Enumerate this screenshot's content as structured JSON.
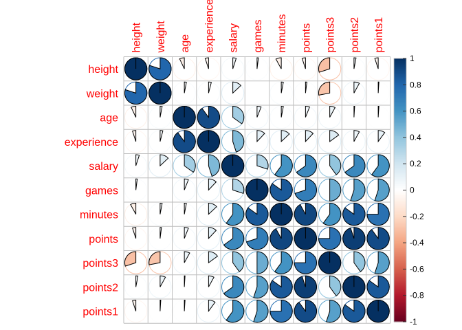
{
  "chart_data": {
    "type": "heatmap",
    "style": "corrplot pie",
    "variables": [
      "height",
      "weight",
      "age",
      "experience",
      "salary",
      "games",
      "minutes",
      "points",
      "points3",
      "points2",
      "points1"
    ],
    "matrix": [
      [
        1.0,
        0.8,
        -0.07,
        -0.05,
        0.05,
        0.02,
        -0.08,
        -0.05,
        -0.3,
        0.03,
        -0.05
      ],
      [
        0.8,
        1.0,
        0.03,
        0.04,
        0.13,
        0.0,
        0.03,
        0.02,
        -0.28,
        0.08,
        0.01
      ],
      [
        -0.07,
        0.03,
        1.0,
        0.9,
        0.35,
        0.06,
        0.03,
        0.06,
        0.08,
        0.01,
        0.01
      ],
      [
        -0.05,
        0.04,
        0.9,
        1.0,
        0.45,
        0.12,
        0.13,
        0.12,
        0.15,
        0.08,
        0.1
      ],
      [
        0.05,
        0.13,
        0.35,
        0.45,
        1.0,
        0.3,
        0.6,
        0.65,
        0.4,
        0.65,
        0.6
      ],
      [
        0.02,
        0.0,
        0.06,
        0.12,
        0.3,
        1.0,
        0.85,
        0.7,
        0.5,
        0.55,
        0.55
      ],
      [
        -0.08,
        0.03,
        0.03,
        0.13,
        0.6,
        0.85,
        1.0,
        0.92,
        0.6,
        0.85,
        0.75
      ],
      [
        -0.05,
        0.02,
        0.06,
        0.12,
        0.65,
        0.7,
        0.92,
        1.0,
        0.75,
        0.95,
        0.9
      ],
      [
        -0.3,
        -0.28,
        0.08,
        0.15,
        0.4,
        0.5,
        0.6,
        0.75,
        1.0,
        0.4,
        0.55
      ],
      [
        0.03,
        0.08,
        0.01,
        0.08,
        0.65,
        0.55,
        0.85,
        0.95,
        0.4,
        1.0,
        0.85
      ],
      [
        -0.05,
        0.01,
        0.01,
        0.1,
        0.6,
        0.55,
        0.75,
        0.9,
        0.55,
        0.85,
        1.0
      ]
    ],
    "colorbar": {
      "min": -1,
      "max": 1,
      "ticks": [
        "1",
        "0.8",
        "0.6",
        "0.4",
        "0.2",
        "0",
        "-0.2",
        "-0.4",
        "-0.6",
        "-0.8",
        "-1"
      ]
    },
    "label_color": "#ff0000",
    "grid_color": "#bebebe",
    "palette": [
      "#67001F",
      "#B2182B",
      "#D6604D",
      "#F4A582",
      "#FDDBC7",
      "#FFFFFF",
      "#D1E5F0",
      "#92C5DE",
      "#4393C3",
      "#2166AC",
      "#053061"
    ]
  }
}
